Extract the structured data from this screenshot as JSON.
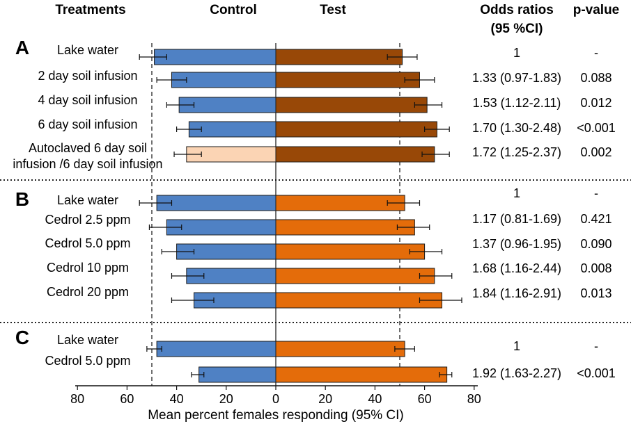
{
  "chart_data": {
    "type": "bar",
    "orientation": "horizontal-diverging",
    "headers": {
      "treatments": "Treatments",
      "control": "Control",
      "test": "Test",
      "odds_ratio_line1": "Odds ratios",
      "odds_ratio_line2": "(95 %CI)",
      "pvalue": "p-value"
    },
    "xlabel": "Mean percent females responding (95% CI)",
    "x_ticks": [
      "80",
      "60",
      "40",
      "20",
      "0",
      "20",
      "40",
      "60",
      "80"
    ],
    "xlim": [
      -80,
      80
    ],
    "reference_line_value": 50,
    "colors": {
      "control": "#4f81c4",
      "control_autoclaved": "#fbd4b4",
      "test_soil": "#984807",
      "test_cedrol": "#e46c0a",
      "bar_edge": "#1a1a1a"
    },
    "panels": [
      {
        "id": "A",
        "rows": [
          {
            "label": [
              "Lake water"
            ],
            "control": 49,
            "control_ci": [
              44,
              55
            ],
            "test": 51,
            "test_ci": [
              45,
              57
            ],
            "test_color": "test_soil",
            "or": "1",
            "p": "-"
          },
          {
            "label": [
              "2 day soil infusion"
            ],
            "control": 42,
            "control_ci": [
              36,
              48
            ],
            "test": 58,
            "test_ci": [
              52,
              64
            ],
            "test_color": "test_soil",
            "or": "1.33 (0.97-1.83)",
            "p": "0.088"
          },
          {
            "label": [
              "4 day soil infusion"
            ],
            "control": 39,
            "control_ci": [
              33,
              44
            ],
            "test": 61,
            "test_ci": [
              56,
              67
            ],
            "test_color": "test_soil",
            "or": "1.53 (1.12-2.11)",
            "p": "0.012"
          },
          {
            "label": [
              "6 day soil infusion"
            ],
            "control": 35,
            "control_ci": [
              30,
              40
            ],
            "test": 65,
            "test_ci": [
              60,
              70
            ],
            "test_color": "test_soil",
            "or": "1.70 (1.30-2.48)",
            "p": "<0.001"
          },
          {
            "label": [
              "Autoclaved 6 day soil",
              "infusion /6 day soil infusion"
            ],
            "control": 36,
            "control_ci": [
              30,
              41
            ],
            "control_color": "control_autoclaved",
            "test": 64,
            "test_ci": [
              59,
              70
            ],
            "test_color": "test_soil",
            "or": "1.72 (1.25-2.37)",
            "p": "0.002"
          }
        ]
      },
      {
        "id": "B",
        "rows": [
          {
            "label": [
              "Lake water"
            ],
            "control": 48,
            "control_ci": [
              42,
              55
            ],
            "test": 52,
            "test_ci": [
              45,
              58
            ],
            "test_color": "test_cedrol",
            "or": "1",
            "p": "-"
          },
          {
            "label": [
              "Cedrol 2.5 ppm"
            ],
            "control": 44,
            "control_ci": [
              38,
              51
            ],
            "test": 56,
            "test_ci": [
              49,
              62
            ],
            "test_color": "test_cedrol",
            "or": "1.17 (0.81-1.69)",
            "p": "0.421"
          },
          {
            "label": [
              "Cedrol 5.0 ppm"
            ],
            "control": 40,
            "control_ci": [
              33,
              46
            ],
            "test": 60,
            "test_ci": [
              54,
              67
            ],
            "test_color": "test_cedrol",
            "or": "1.37 (0.96-1.95)",
            "p": "0.090"
          },
          {
            "label": [
              "Cedrol 10  ppm"
            ],
            "control": 36,
            "control_ci": [
              29,
              42
            ],
            "test": 64,
            "test_ci": [
              58,
              71
            ],
            "test_color": "test_cedrol",
            "or": "1.68 (1.16-2.44)",
            "p": "0.008"
          },
          {
            "label": [
              "Cedrol 20  ppm"
            ],
            "control": 33,
            "control_ci": [
              25,
              42
            ],
            "test": 67,
            "test_ci": [
              58,
              75
            ],
            "test_color": "test_cedrol",
            "or": "1.84 (1.16-2.91)",
            "p": "0.013"
          }
        ]
      },
      {
        "id": "C",
        "rows": [
          {
            "label": [
              "Lake water"
            ],
            "control": 48,
            "control_ci": [
              46,
              52
            ],
            "test": 52,
            "test_ci": [
              48,
              56
            ],
            "test_color": "test_cedrol",
            "or": "1",
            "p": "-"
          },
          {
            "label": [
              "Cedrol 5.0 ppm"
            ],
            "control": 31,
            "control_ci": [
              29,
              34
            ],
            "test": 69,
            "test_ci": [
              66,
              71
            ],
            "test_color": "test_cedrol",
            "or": "1.92 (1.63-2.27)",
            "p": "<0.001"
          }
        ]
      }
    ]
  }
}
